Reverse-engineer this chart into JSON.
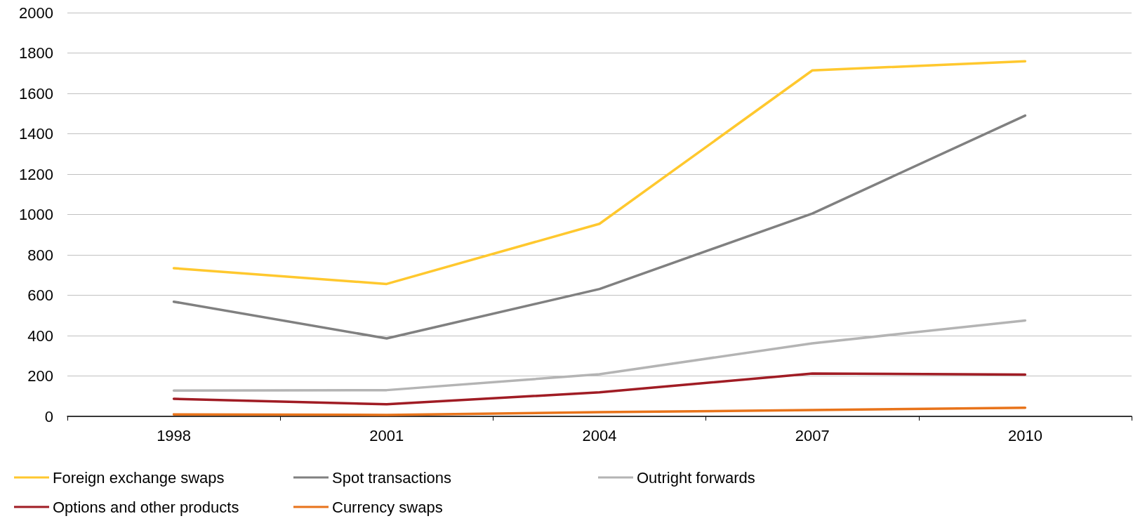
{
  "chart_data": {
    "type": "line",
    "categories": [
      "1998",
      "2001",
      "2004",
      "2007",
      "2010"
    ],
    "series": [
      {
        "name": "Foreign exchange swaps",
        "color": "#ffc82e",
        "values": [
          734,
          656,
          954,
          1714,
          1759
        ]
      },
      {
        "name": "Spot transactions",
        "color": "#808080",
        "values": [
          568,
          386,
          631,
          1005,
          1490
        ]
      },
      {
        "name": "Outright forwards",
        "color": "#b4b4b4",
        "values": [
          128,
          130,
          209,
          362,
          475
        ]
      },
      {
        "name": "Options and other products",
        "color": "#a01c24",
        "values": [
          87,
          60,
          119,
          212,
          207
        ]
      },
      {
        "name": "Currency swaps",
        "color": "#e8731a",
        "values": [
          10,
          7,
          21,
          31,
          43
        ]
      }
    ],
    "ylim": [
      0,
      2000
    ],
    "yticks": [
      0,
      200,
      400,
      600,
      800,
      1000,
      1200,
      1400,
      1600,
      1800,
      2000
    ],
    "grid": "y",
    "legend": "bottom",
    "marker": "none",
    "line_style": "solid"
  }
}
